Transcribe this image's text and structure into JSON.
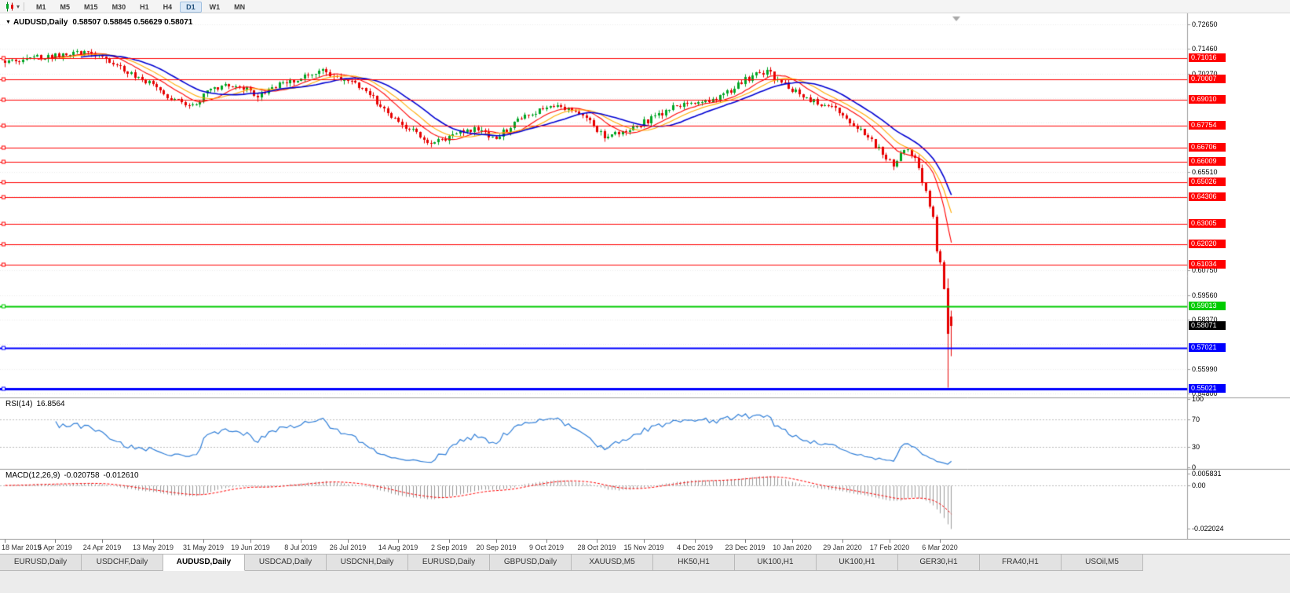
{
  "toolbar": {
    "chart_type_tooltip": "Candlesticks",
    "timeframes": [
      "M1",
      "M5",
      "M15",
      "M30",
      "H1",
      "H4",
      "D1",
      "W1",
      "MN"
    ],
    "active_timeframe": "D1"
  },
  "chart_header": {
    "marker": "▼",
    "symbol_title": "AUDUSD,Daily",
    "ohlc_text": "0.58507 0.58845 0.56629 0.58071"
  },
  "indicators": {
    "rsi_label": "RSI(14)",
    "rsi_value": "16.8564",
    "macd_label": "MACD(12,26,9)",
    "macd_value_main": "-0.020758",
    "macd_value_signal": "-0.012610"
  },
  "axes": {
    "price_labels": [
      {
        "text": "0.72650",
        "price": 0.7265
      },
      {
        "text": "0.71460",
        "price": 0.7146
      },
      {
        "text": "0.70270",
        "price": 0.7027
      },
      {
        "text": "0.65510",
        "price": 0.6551
      },
      {
        "text": "0.60750",
        "price": 0.6075
      },
      {
        "text": "0.59560",
        "price": 0.5956
      },
      {
        "text": "0.58370",
        "price": 0.5837
      },
      {
        "text": "0.55990",
        "price": 0.5599
      },
      {
        "text": "0.54800",
        "price": 0.548
      }
    ],
    "rsi_labels": [
      {
        "text": "100",
        "value": 100
      },
      {
        "text": "70",
        "value": 70
      },
      {
        "text": "30",
        "value": 30
      },
      {
        "text": "0",
        "value": 0
      }
    ],
    "macd_labels": [
      {
        "text": "0.005831",
        "value": 0.005831
      },
      {
        "text": "0.00",
        "value": 0
      },
      {
        "text": "-0.022024",
        "value": -0.022024
      }
    ],
    "date_labels": [
      "18 Mar 2019",
      "5 Apr 2019",
      "24 Apr 2019",
      "13 May 2019",
      "31 May 2019",
      "19 Jun 2019",
      "8 Jul 2019",
      "26 Jul 2019",
      "14 Aug 2019",
      "2 Sep 2019",
      "20 Sep 2019",
      "9 Oct 2019",
      "28 Oct 2019",
      "15 Nov 2019",
      "4 Dec 2019",
      "23 Dec 2019",
      "10 Jan 2020",
      "29 Jan 2020",
      "17 Feb 2020",
      "6 Mar 2020"
    ]
  },
  "price_markers": [
    {
      "text": "0.71016",
      "price": 0.71016,
      "color": "#FF0000",
      "line_width": 1
    },
    {
      "text": "0.70007",
      "price": 0.70007,
      "color": "#FF0000",
      "line_width": 1
    },
    {
      "text": "0.69010",
      "price": 0.6901,
      "color": "#FF0000",
      "line_width": 1
    },
    {
      "text": "0.67754",
      "price": 0.67754,
      "color": "#FF0000",
      "line_width": 1
    },
    {
      "text": "0.66706",
      "price": 0.66706,
      "color": "#FF0000",
      "line_width": 1
    },
    {
      "text": "0.66009",
      "price": 0.66009,
      "color": "#FF0000",
      "line_width": 1
    },
    {
      "text": "0.65026",
      "price": 0.65026,
      "color": "#FF0000",
      "line_width": 1
    },
    {
      "text": "0.64306",
      "price": 0.64306,
      "color": "#FF0000",
      "line_width": 1
    },
    {
      "text": "0.63005",
      "price": 0.63005,
      "color": "#FF0000",
      "line_width": 1
    },
    {
      "text": "0.62020",
      "price": 0.6202,
      "color": "#FF0000",
      "line_width": 1
    },
    {
      "text": "0.61034",
      "price": 0.61034,
      "color": "#FF0000",
      "line_width": 1
    },
    {
      "text": "0.59013",
      "price": 0.59013,
      "color": "#00CC00",
      "line_width": 2
    },
    {
      "text": "0.58071",
      "price": 0.58071,
      "color": "#000000",
      "line_width": 0
    },
    {
      "text": "0.57021",
      "price": 0.57021,
      "color": "#0000FF",
      "line_width": 2
    },
    {
      "text": "0.55021",
      "price": 0.55021,
      "color": "#0000FF",
      "line_width": 3
    }
  ],
  "tabs": {
    "items": [
      "EURUSD,Daily",
      "USDCHF,Daily",
      "AUDUSD,Daily",
      "USDCAD,Daily",
      "USDCNH,Daily",
      "EURUSD,Daily",
      "GBPUSD,Daily",
      "XAUUSD,M5",
      "HK50,H1",
      "UK100,H1",
      "UK100,H1",
      "GER30,H1",
      "FRA40,H1",
      "USOil,M5"
    ],
    "active_index": 2
  },
  "chart_data": {
    "type": "candlestick",
    "title": "AUDUSD,Daily",
    "x_range": [
      "18 Mar 2019",
      "19 Mar 2020"
    ],
    "y_range": [
      0.54765,
      0.7265
    ],
    "current_ohlc": {
      "open": 0.58507,
      "high": 0.58845,
      "low": 0.56629,
      "close": 0.58071
    },
    "bar_count": 263,
    "price_anchors": [
      [
        0,
        0.7085
      ],
      [
        6,
        0.71
      ],
      [
        12,
        0.7108
      ],
      [
        18,
        0.7125
      ],
      [
        24,
        0.7132
      ],
      [
        28,
        0.7095
      ],
      [
        34,
        0.703
      ],
      [
        40,
        0.698
      ],
      [
        46,
        0.69
      ],
      [
        52,
        0.6875
      ],
      [
        58,
        0.696
      ],
      [
        64,
        0.6975
      ],
      [
        70,
        0.692
      ],
      [
        76,
        0.6975
      ],
      [
        82,
        0.701
      ],
      [
        88,
        0.704
      ],
      [
        94,
        0.7
      ],
      [
        100,
        0.694
      ],
      [
        106,
        0.684
      ],
      [
        112,
        0.676
      ],
      [
        118,
        0.669
      ],
      [
        124,
        0.673
      ],
      [
        130,
        0.676
      ],
      [
        136,
        0.6715
      ],
      [
        142,
        0.68
      ],
      [
        148,
        0.6855
      ],
      [
        154,
        0.687
      ],
      [
        160,
        0.682
      ],
      [
        166,
        0.6725
      ],
      [
        172,
        0.674
      ],
      [
        178,
        0.68
      ],
      [
        184,
        0.6855
      ],
      [
        190,
        0.6885
      ],
      [
        196,
        0.69
      ],
      [
        200,
        0.6935
      ],
      [
        204,
        0.6985
      ],
      [
        208,
        0.7025
      ],
      [
        211,
        0.7035
      ],
      [
        215,
        0.6985
      ],
      [
        219,
        0.6935
      ],
      [
        224,
        0.689
      ],
      [
        229,
        0.6865
      ],
      [
        234,
        0.68
      ],
      [
        238,
        0.674
      ],
      [
        241,
        0.668
      ],
      [
        244,
        0.6625
      ],
      [
        246,
        0.6585
      ],
      [
        248,
        0.664
      ],
      [
        250,
        0.666
      ],
      [
        252,
        0.6625
      ],
      [
        253,
        0.6565
      ],
      [
        254,
        0.651
      ],
      [
        255,
        0.645
      ],
      [
        256,
        0.639
      ],
      [
        257,
        0.632
      ],
      [
        258,
        0.6175
      ],
      [
        259,
        0.6115
      ],
      [
        260,
        0.598
      ],
      [
        261,
        0.577
      ],
      [
        262,
        0.58071
      ]
    ],
    "last_candles": [
      {
        "open": 0.599,
        "high": 0.604,
        "low": 0.551,
        "close": 0.577
      },
      {
        "open": 0.58507,
        "high": 0.58845,
        "low": 0.56629,
        "close": 0.58071
      }
    ],
    "date_tick_bars": [
      0,
      14,
      27,
      41,
      55,
      68,
      82,
      95,
      109,
      123,
      136,
      150,
      164,
      177,
      191,
      205,
      218,
      232,
      245,
      259
    ],
    "colors": {
      "up": "#00A524",
      "down": "#E60000",
      "ma_fast": "#FF0000",
      "ma_mid": "#FFAA00",
      "ma_slow": "#0000D2",
      "rsi": "#2F7ED8",
      "macd_hist": "#999999",
      "macd_signal": "#FF0000"
    },
    "moving_average_periods": [
      10,
      15,
      22
    ],
    "rsi": {
      "period": 14,
      "levels": [
        70,
        30
      ],
      "last_value": 16.8564
    },
    "macd": {
      "fast": 12,
      "slow": 26,
      "signal": 9,
      "last_main": -0.020758,
      "last_signal": -0.01261
    },
    "y_axis_range_rsi": [
      0,
      100
    ],
    "y_axis_range_macd": [
      -0.022024,
      0.005831
    ]
  }
}
